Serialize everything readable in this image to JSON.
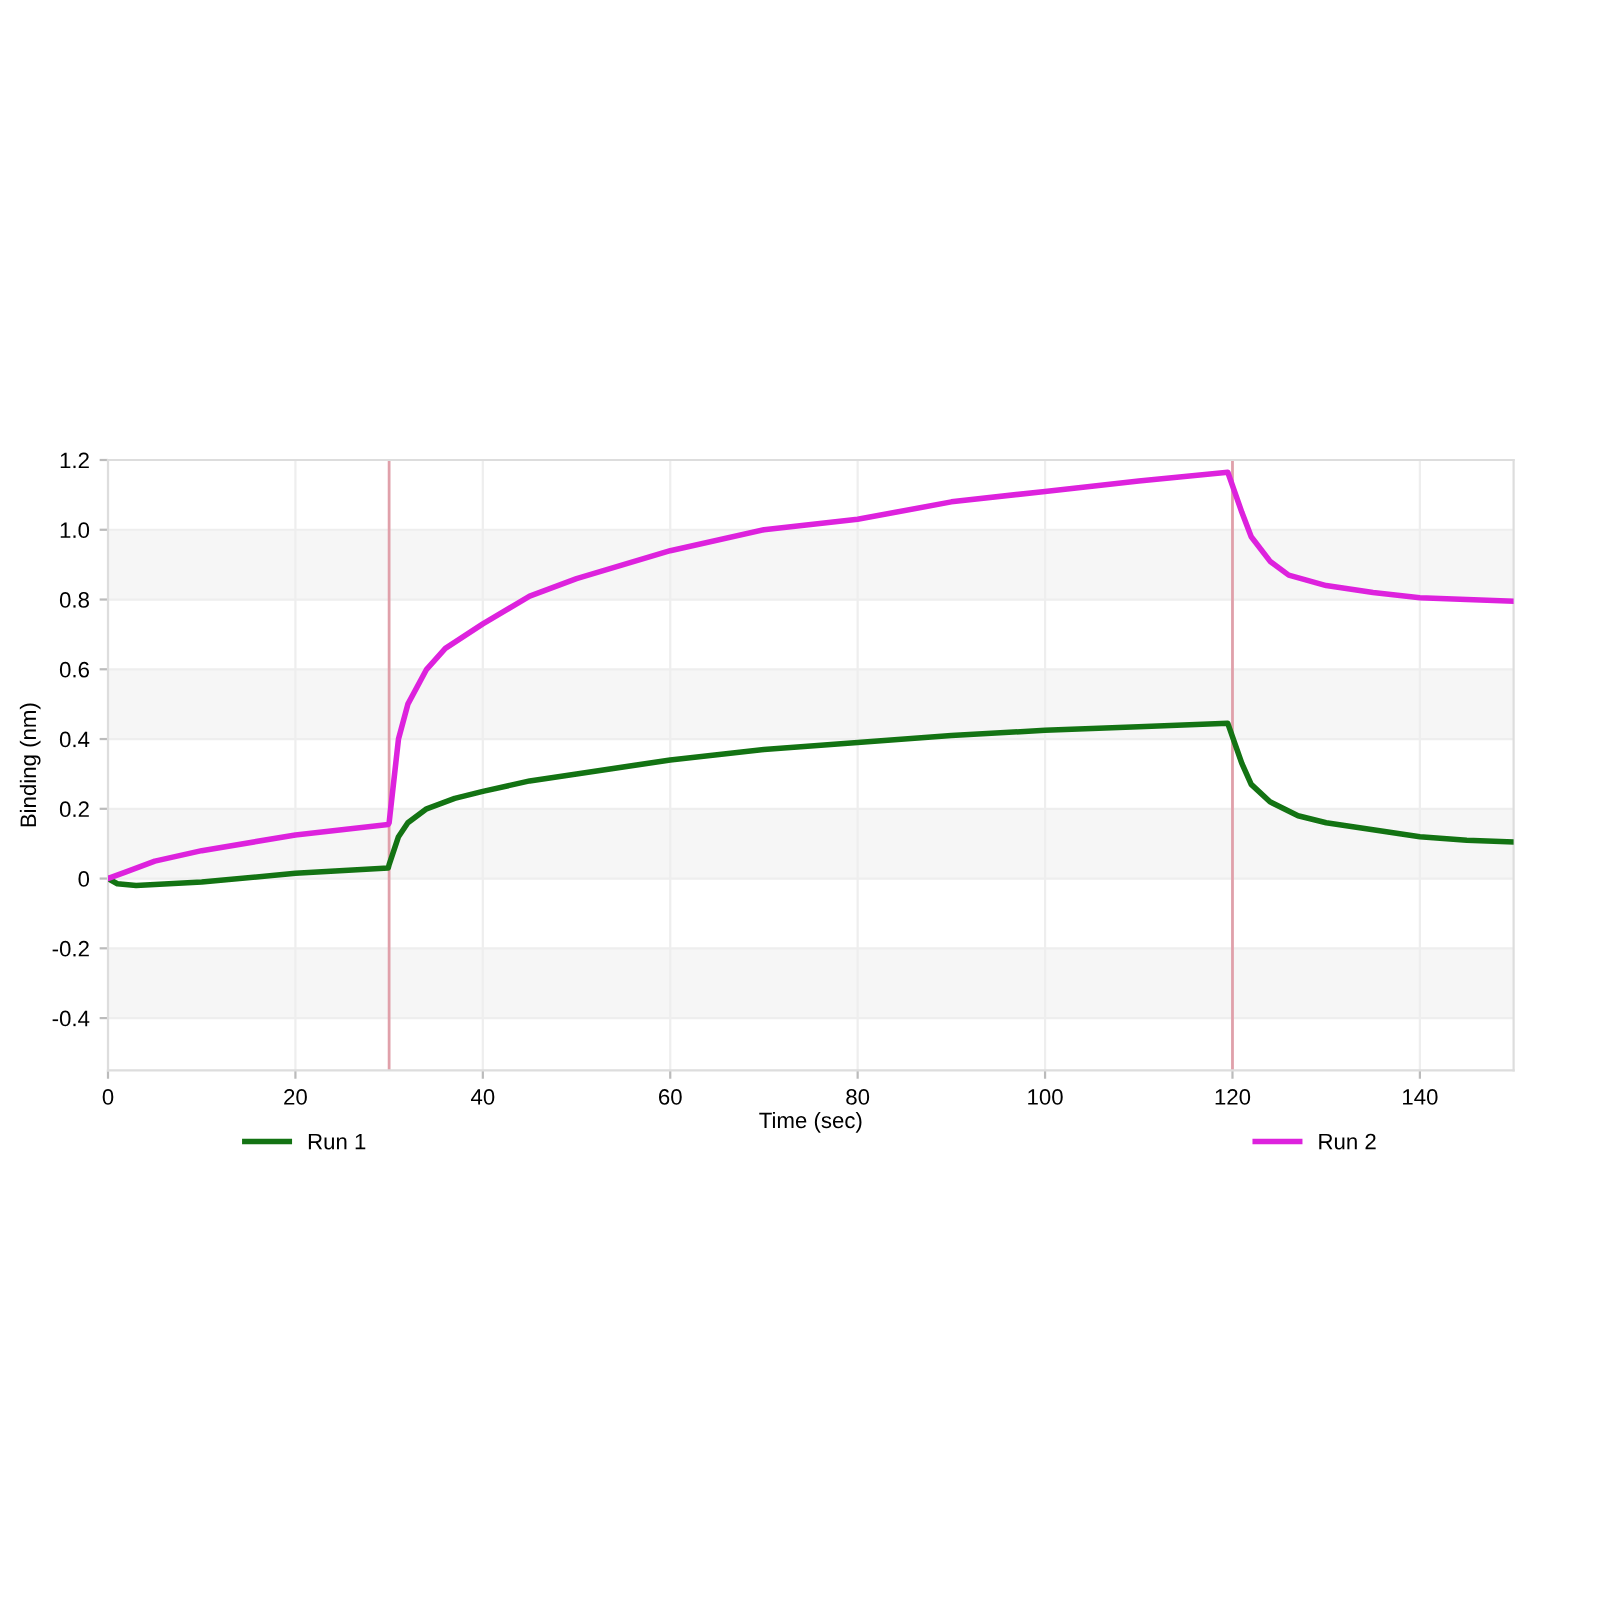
{
  "chart_data": {
    "type": "line",
    "xlabel": "Time (sec)",
    "ylabel": "Binding (nm)",
    "xlim": [
      0,
      150
    ],
    "xticks": [
      0,
      20,
      40,
      60,
      80,
      100,
      120,
      140
    ],
    "ylim": [
      -0.55,
      1.2
    ],
    "yticks": [
      {
        "value": -0.4,
        "label": "-0.4"
      },
      {
        "value": -0.2,
        "label": "-0.2"
      },
      0,
      0.2,
      0.4,
      0.6,
      0.8,
      {
        "value": 1.0,
        "label": "1.0"
      },
      1.2
    ],
    "grid": true,
    "legend": "bottom",
    "marker": "none",
    "line_style": "solid",
    "series": [
      {
        "name": "Run 1",
        "color": "#137313",
        "x": [
          0,
          1,
          3,
          10,
          20,
          29.9,
          30,
          31,
          32,
          34,
          37,
          40,
          45,
          50,
          60,
          70,
          80,
          90,
          100,
          110,
          119.5,
          121,
          122,
          124,
          127,
          130,
          135,
          140,
          145,
          150
        ],
        "values": [
          0,
          -0.015,
          -0.02,
          -0.01,
          0.015,
          0.03,
          0.04,
          0.12,
          0.16,
          0.2,
          0.23,
          0.25,
          0.28,
          0.3,
          0.34,
          0.37,
          0.39,
          0.41,
          0.425,
          0.435,
          0.445,
          0.33,
          0.27,
          0.22,
          0.18,
          0.16,
          0.14,
          0.12,
          0.11,
          0.105
        ]
      },
      {
        "name": "Run 2",
        "color": "#dd22dd",
        "x": [
          0,
          2,
          5,
          10,
          20,
          29.9,
          30,
          31,
          32,
          34,
          36,
          40,
          45,
          50,
          55,
          60,
          70,
          80,
          90,
          100,
          110,
          119.5,
          121,
          122,
          124,
          126,
          130,
          135,
          140,
          145,
          150
        ],
        "values": [
          0,
          0.02,
          0.05,
          0.08,
          0.125,
          0.155,
          0.16,
          0.4,
          0.5,
          0.6,
          0.66,
          0.73,
          0.81,
          0.86,
          0.9,
          0.94,
          1.0,
          1.03,
          1.08,
          1.11,
          1.14,
          1.165,
          1.05,
          0.98,
          0.91,
          0.87,
          0.84,
          0.82,
          0.805,
          0.8,
          0.795
        ]
      }
    ],
    "ref_lines": [
      {
        "axis": "x",
        "value": 30,
        "color": "#e0a0aa"
      },
      {
        "axis": "x",
        "value": 120,
        "color": "#e0a0aa"
      }
    ],
    "bands": [
      {
        "axis": "y",
        "from": 0.8,
        "to": 1.0,
        "color": "#f6f6f6"
      },
      {
        "axis": "y",
        "from": 0.4,
        "to": 0.6,
        "color": "#f6f6f6"
      },
      {
        "axis": "y",
        "from": 0,
        "to": 0.2,
        "color": "#f6f6f6"
      },
      {
        "axis": "y",
        "from": -0.4,
        "to": -0.2,
        "color": "#f6f6f6"
      }
    ]
  }
}
